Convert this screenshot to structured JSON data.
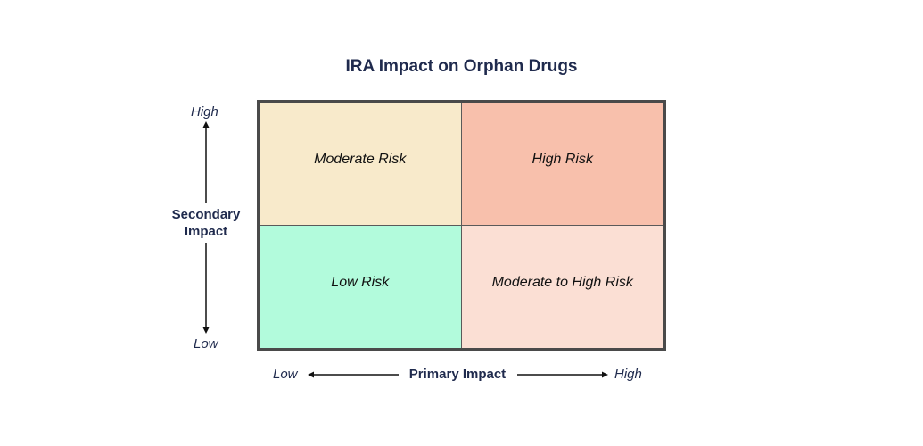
{
  "title": "IRA Impact on Orphan Drugs",
  "quadrants": {
    "top_left": {
      "label": "Moderate Risk",
      "color": "#f8eacb"
    },
    "top_right": {
      "label": "High Risk",
      "color": "#f8c0ac"
    },
    "bottom_left": {
      "label": "Low Risk",
      "color": "#b2fbdc"
    },
    "bottom_right": {
      "label": "Moderate to High Risk",
      "color": "#fbdfd4"
    }
  },
  "y_axis": {
    "title_line1": "Secondary",
    "title_line2": "Impact",
    "high": "High",
    "low": "Low"
  },
  "x_axis": {
    "title": "Primary Impact",
    "low": "Low",
    "high": "High"
  },
  "colors": {
    "text": "#1f2a4d",
    "border": "#4a4a4a"
  }
}
